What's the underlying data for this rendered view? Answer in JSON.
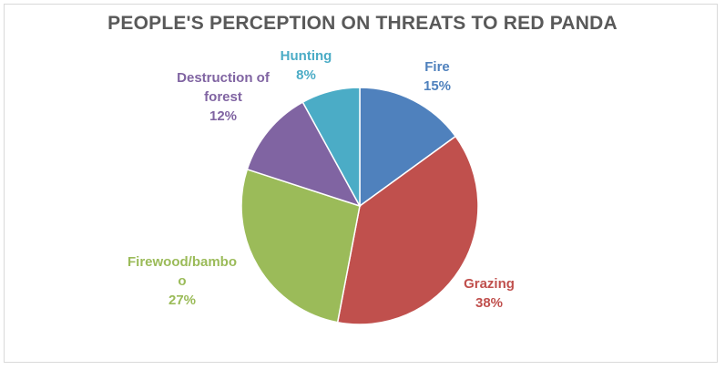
{
  "chart_data": {
    "type": "pie",
    "title": "PEOPLE'S PERCEPTION ON THREATS TO RED PANDA",
    "slices": [
      {
        "label_lines": [
          "Fire"
        ],
        "value": 15,
        "value_label": "15%",
        "color": "#4f81bd"
      },
      {
        "label_lines": [
          "Grazing"
        ],
        "value": 38,
        "value_label": "38%",
        "color": "#c0504d"
      },
      {
        "label_lines": [
          "Firewood/bambo",
          "o"
        ],
        "value": 27,
        "value_label": "27%",
        "color": "#9bbb59"
      },
      {
        "label_lines": [
          "Destruction of",
          "forest"
        ],
        "value": 12,
        "value_label": "12%",
        "color": "#8064a2"
      },
      {
        "label_lines": [
          "Hunting"
        ],
        "value": 8,
        "value_label": "8%",
        "color": "#4bacc6"
      }
    ],
    "start_angle_deg": 0,
    "direction": "clockwise",
    "legend": "none",
    "data_labels": "outside"
  }
}
